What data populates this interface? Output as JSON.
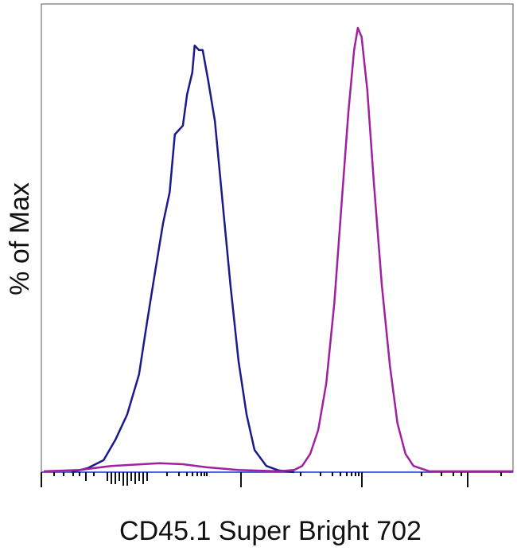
{
  "chart_data": {
    "type": "line",
    "xlabel": "CD45.1 Super Bright 702",
    "ylabel": "% of Max",
    "xlim": [
      0,
      1000
    ],
    "ylim": [
      0,
      100
    ],
    "series": [
      {
        "color": "#1a1a8c",
        "x": [
          64,
          98,
          132,
          157,
          182,
          207,
          223,
          241,
          258,
          272,
          283,
          300,
          309,
          320,
          325,
          334,
          342,
          354,
          368,
          384,
          401,
          418,
          435,
          452,
          477,
          503,
          536
        ],
        "values": [
          0,
          0.9,
          2.7,
          7.3,
          13,
          22,
          33,
          45,
          56,
          63,
          76,
          78,
          85,
          90,
          96,
          95,
          95,
          88,
          79,
          61,
          42,
          25,
          13,
          5,
          1.4,
          0.4,
          0
        ]
      },
      {
        "color": "#a020a0",
        "x": [
          5,
          81,
          148,
          250,
          300,
          351,
          418,
          503,
          536,
          553,
          570,
          587,
          604,
          621,
          637,
          651,
          663,
          671,
          679,
          691,
          705,
          722,
          739,
          755,
          772,
          789,
          823,
          1000
        ],
        "values": [
          0.2,
          0.5,
          1.4,
          2,
          1.8,
          1.1,
          0.5,
          0.2,
          0.5,
          1.4,
          4.1,
          9.5,
          20,
          38,
          61,
          81,
          95,
          100,
          98,
          86,
          65,
          42,
          24,
          11,
          4.1,
          1.4,
          0.2,
          0.2
        ]
      }
    ]
  }
}
